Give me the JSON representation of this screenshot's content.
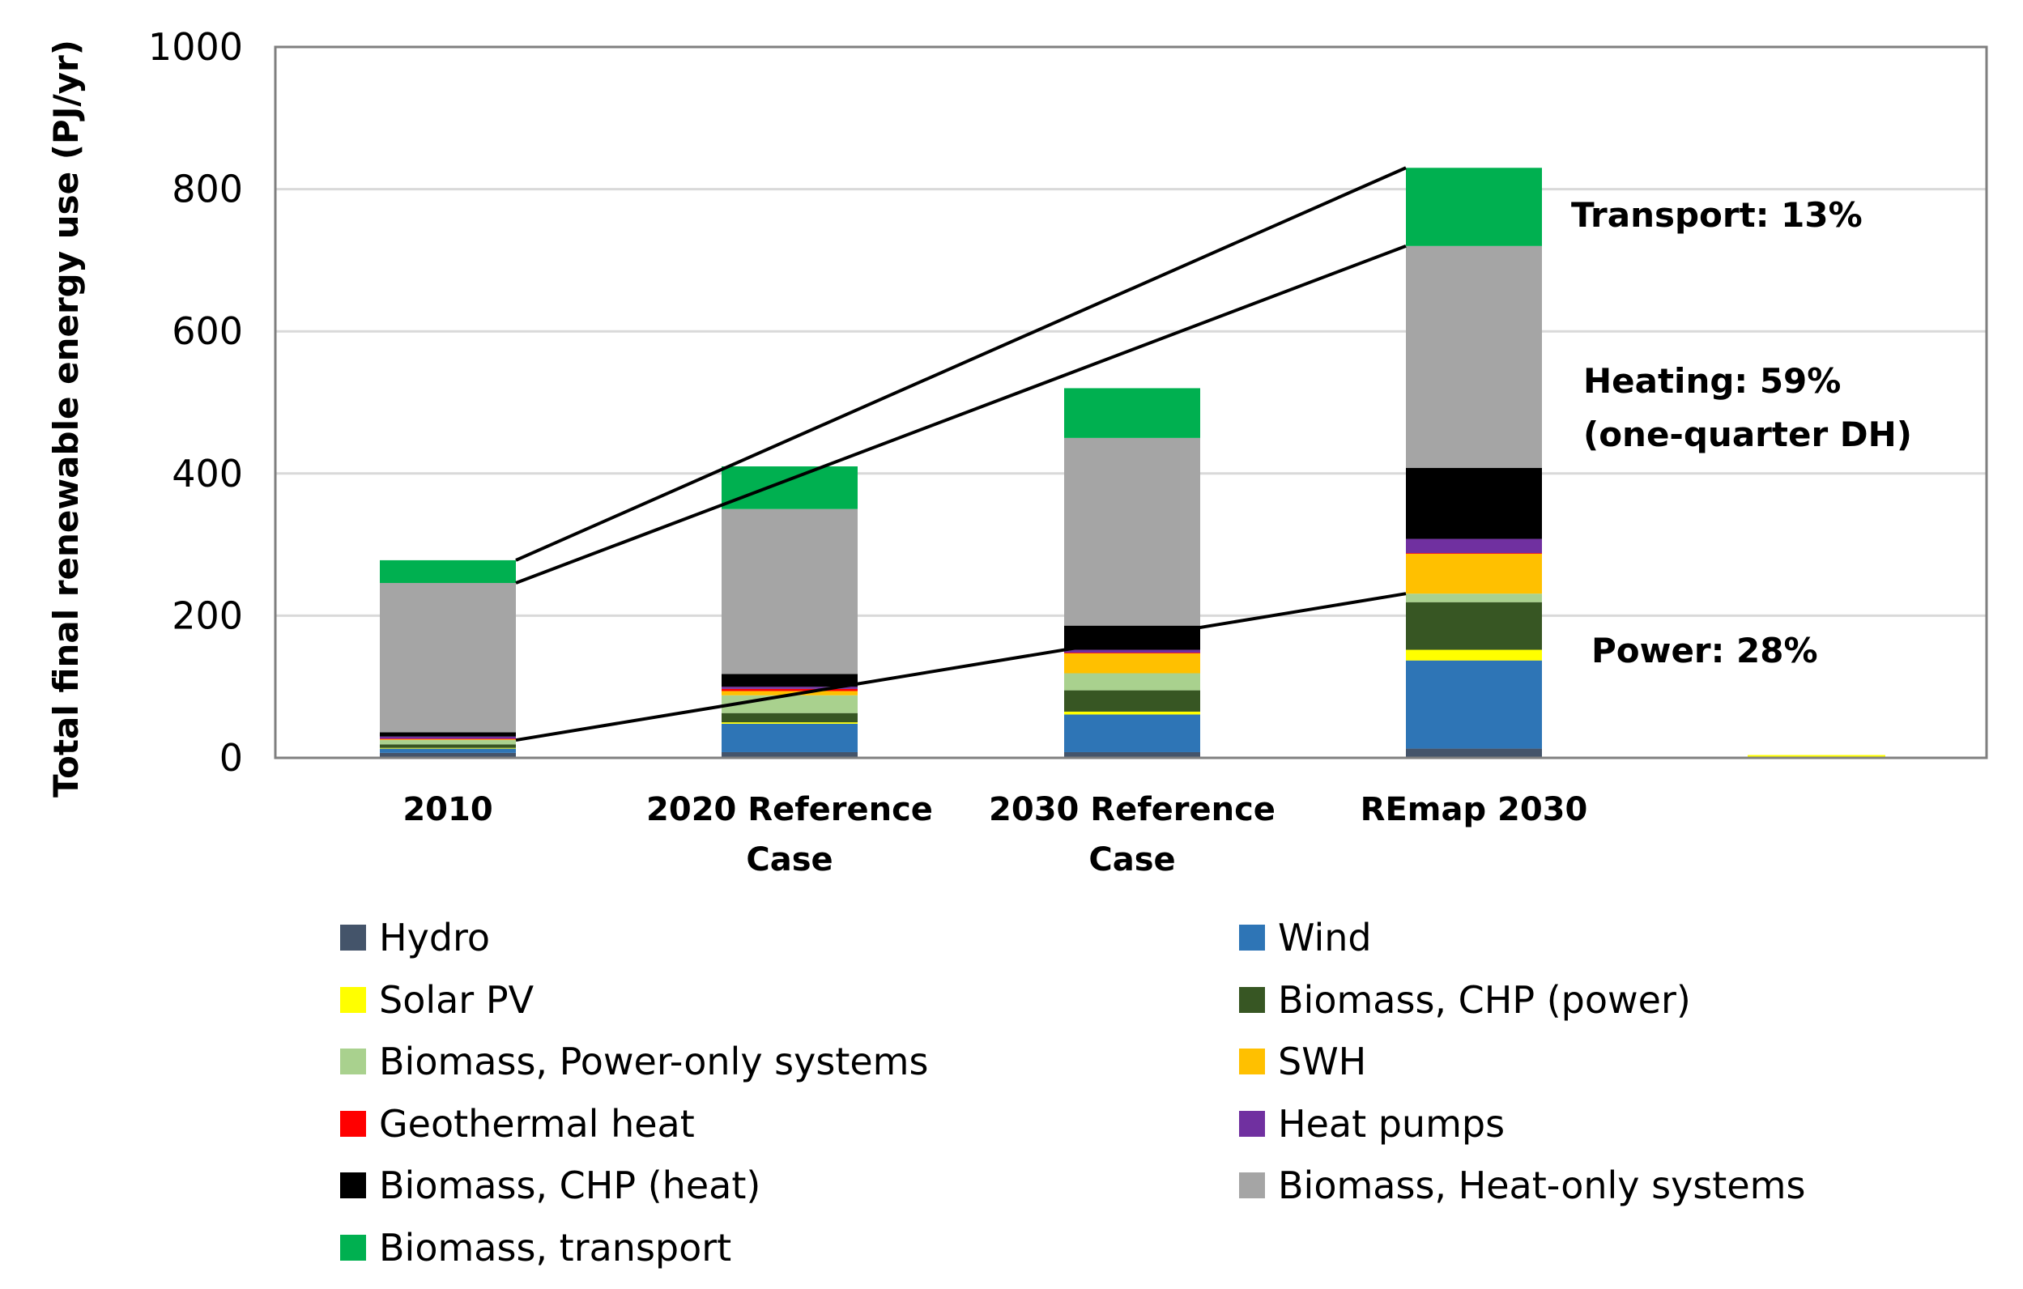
{
  "chart_data": {
    "type": "bar",
    "stacked": true,
    "title": "",
    "xlabel": "",
    "ylabel": "Total final renewable energy use (PJ/yr)",
    "ylim": [
      0,
      1000
    ],
    "yticks": [
      "0",
      "200",
      "400",
      "600",
      "800",
      "1000"
    ],
    "grid": true,
    "legend_position": "bottom",
    "categories": [
      "2010",
      "2020 Reference Case",
      "2030 Reference Case",
      "REmap 2030"
    ],
    "series": [
      {
        "name": "Hydro",
        "color": "#44546A",
        "values": [
          7,
          8,
          8,
          13
        ]
      },
      {
        "name": "Wind",
        "color": "#2E75B6",
        "values": [
          6,
          40,
          53,
          124
        ]
      },
      {
        "name": "Solar PV",
        "color": "#FFFF00",
        "values": [
          1,
          2,
          4,
          15
        ]
      },
      {
        "name": "Biomass, CHP (power)",
        "color": "#375623",
        "values": [
          5,
          13,
          30,
          67
        ]
      },
      {
        "name": "Biomass, Power-only systems",
        "color": "#A9D18E",
        "values": [
          6,
          25,
          24,
          12
        ]
      },
      {
        "name": "SWH",
        "color": "#FFC000",
        "values": [
          1,
          6,
          28,
          56
        ]
      },
      {
        "name": "Geothermal heat",
        "color": "#FF0000",
        "values": [
          1,
          3,
          1,
          1
        ]
      },
      {
        "name": "Heat pumps",
        "color": "#7030A0",
        "values": [
          3,
          3,
          4,
          20
        ]
      },
      {
        "name": "Biomass, CHP (heat)",
        "color": "#000000",
        "values": [
          6,
          18,
          34,
          100
        ]
      },
      {
        "name": "Biomass, Heat-only systems",
        "color": "#A5A5A5",
        "values": [
          210,
          232,
          264,
          312
        ]
      },
      {
        "name": "Biomass, transport",
        "color": "#00B050",
        "values": [
          32,
          60,
          70,
          110
        ]
      }
    ],
    "annotations": [
      {
        "text": "Transport: 13%"
      },
      {
        "text": "Heating: 59%"
      },
      {
        "text": "(one-quarter DH)"
      },
      {
        "text": "Power: 28%"
      }
    ]
  }
}
